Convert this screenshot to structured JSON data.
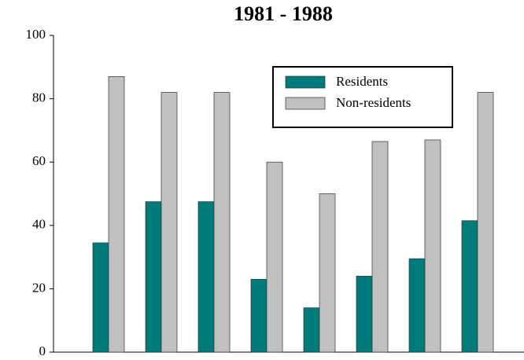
{
  "chart_data": {
    "type": "bar",
    "title": "1981 - 1988",
    "categories": [
      null,
      null,
      null,
      null,
      null,
      null,
      null,
      null
    ],
    "series": [
      {
        "name": "Residents",
        "color": "#007b7b",
        "values": [
          34.5,
          47.5,
          47.5,
          23,
          14,
          24,
          29.5,
          41.5
        ]
      },
      {
        "name": "Non-residents",
        "color": "#c0c0c0",
        "values": [
          87,
          82,
          82,
          60,
          50,
          66.5,
          67,
          82
        ]
      }
    ],
    "ylim": [
      0,
      100
    ],
    "yticks": [
      0,
      20,
      40,
      60,
      80,
      100
    ],
    "grid": false,
    "legend": "top-right"
  }
}
